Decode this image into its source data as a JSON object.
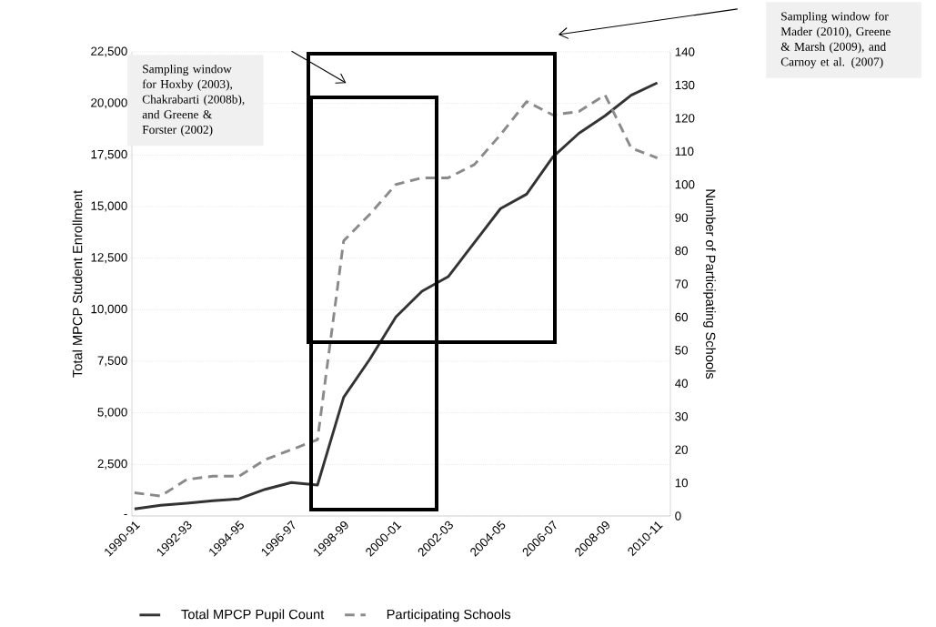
{
  "chart_data": {
    "type": "line",
    "ylabel": "Total MPCP Student Enrollment",
    "y2label": "Number of Participating Schools",
    "categories": [
      "1990-91",
      null,
      "1992-93",
      null,
      "1994-95",
      null,
      "1996-97",
      null,
      "1998-99",
      null,
      "2000-01",
      null,
      "2002-03",
      null,
      "2004-05",
      null,
      "2006-07",
      null,
      "2008-09",
      null,
      "2010-11"
    ],
    "ylim": [
      0,
      22500
    ],
    "yticks": [
      {
        "value": 0,
        "label": "-"
      },
      {
        "value": 2500,
        "label": "2,500"
      },
      {
        "value": 5000,
        "label": "5,000"
      },
      {
        "value": 7500,
        "label": "7,500"
      },
      {
        "value": 10000,
        "label": "10,000"
      },
      {
        "value": 12500,
        "label": "12,500"
      },
      {
        "value": 15000,
        "label": "15,000"
      },
      {
        "value": 17500,
        "label": "17,500"
      },
      {
        "value": 20000,
        "label": "20,000"
      },
      {
        "value": 22500,
        "label": "22,500"
      }
    ],
    "y2lim": [
      0,
      140
    ],
    "y2ticks": [
      0,
      10,
      20,
      30,
      40,
      50,
      60,
      70,
      80,
      90,
      100,
      110,
      120,
      130,
      140
    ],
    "series": [
      {
        "name": "Total MPCP Pupil Count",
        "color": "#333333",
        "line_style": "solid",
        "values": [
          340,
          520,
          620,
          740,
          830,
          1290,
          1620,
          1500,
          5750,
          7600,
          9650,
          10900,
          11600,
          13250,
          14900,
          15600,
          17400,
          18550,
          19400,
          20400,
          21000
        ]
      },
      {
        "name": "Participating Schools",
        "color": "#8a8a8a",
        "line_style": "dashed",
        "axis": "y2",
        "values": [
          7,
          6,
          11,
          12,
          12,
          17,
          20,
          23,
          83,
          91,
          100,
          102,
          102,
          106,
          115,
          125,
          121,
          122,
          127,
          111,
          108
        ]
      }
    ],
    "annotations": [
      "Sampling window for Hoxby (2003), Chakrabarti (2008b), and Greene & Forster (2002)",
      "Sampling window for Mader (2010), Greene & Marsh (2009), and Carnoy et al. (2007)"
    ],
    "grid": "y",
    "marker": "none",
    "legend": "bottom"
  }
}
